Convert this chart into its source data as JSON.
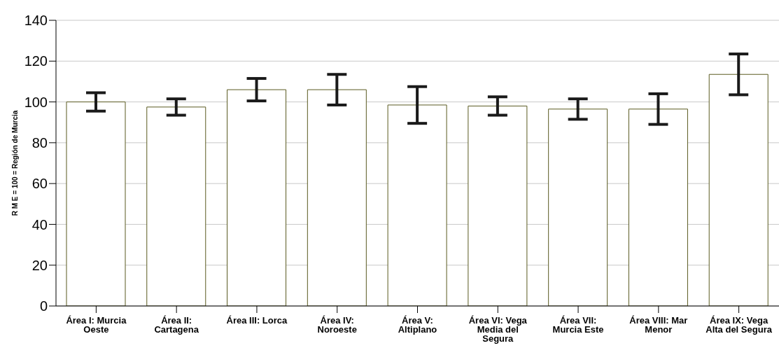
{
  "chart_data": {
    "type": "bar",
    "ylabel": "R M E = 100 = Región de Murcia",
    "categories": [
      "Área I: Murcia Oeste",
      "Área II: Cartagena",
      "Área III: Lorca",
      "Área IV: Noroeste",
      "Área V: Altiplano",
      "Área VI: Vega Media del Segura",
      "Área VII: Murcia Este",
      "Área VIII: Mar Menor",
      "Área IX: Vega Alta del Segura"
    ],
    "values": [
      100,
      97.5,
      106,
      106,
      98.5,
      98,
      96.5,
      96.5,
      113.5
    ],
    "errors": [
      4.5,
      4,
      5.5,
      7.5,
      9,
      4.5,
      5,
      7.5,
      10
    ],
    "color": "#ffffff",
    "ylim": [
      0,
      140
    ],
    "yticks": [
      0,
      20,
      40,
      60,
      80,
      100,
      120,
      140
    ],
    "grid": "y"
  }
}
